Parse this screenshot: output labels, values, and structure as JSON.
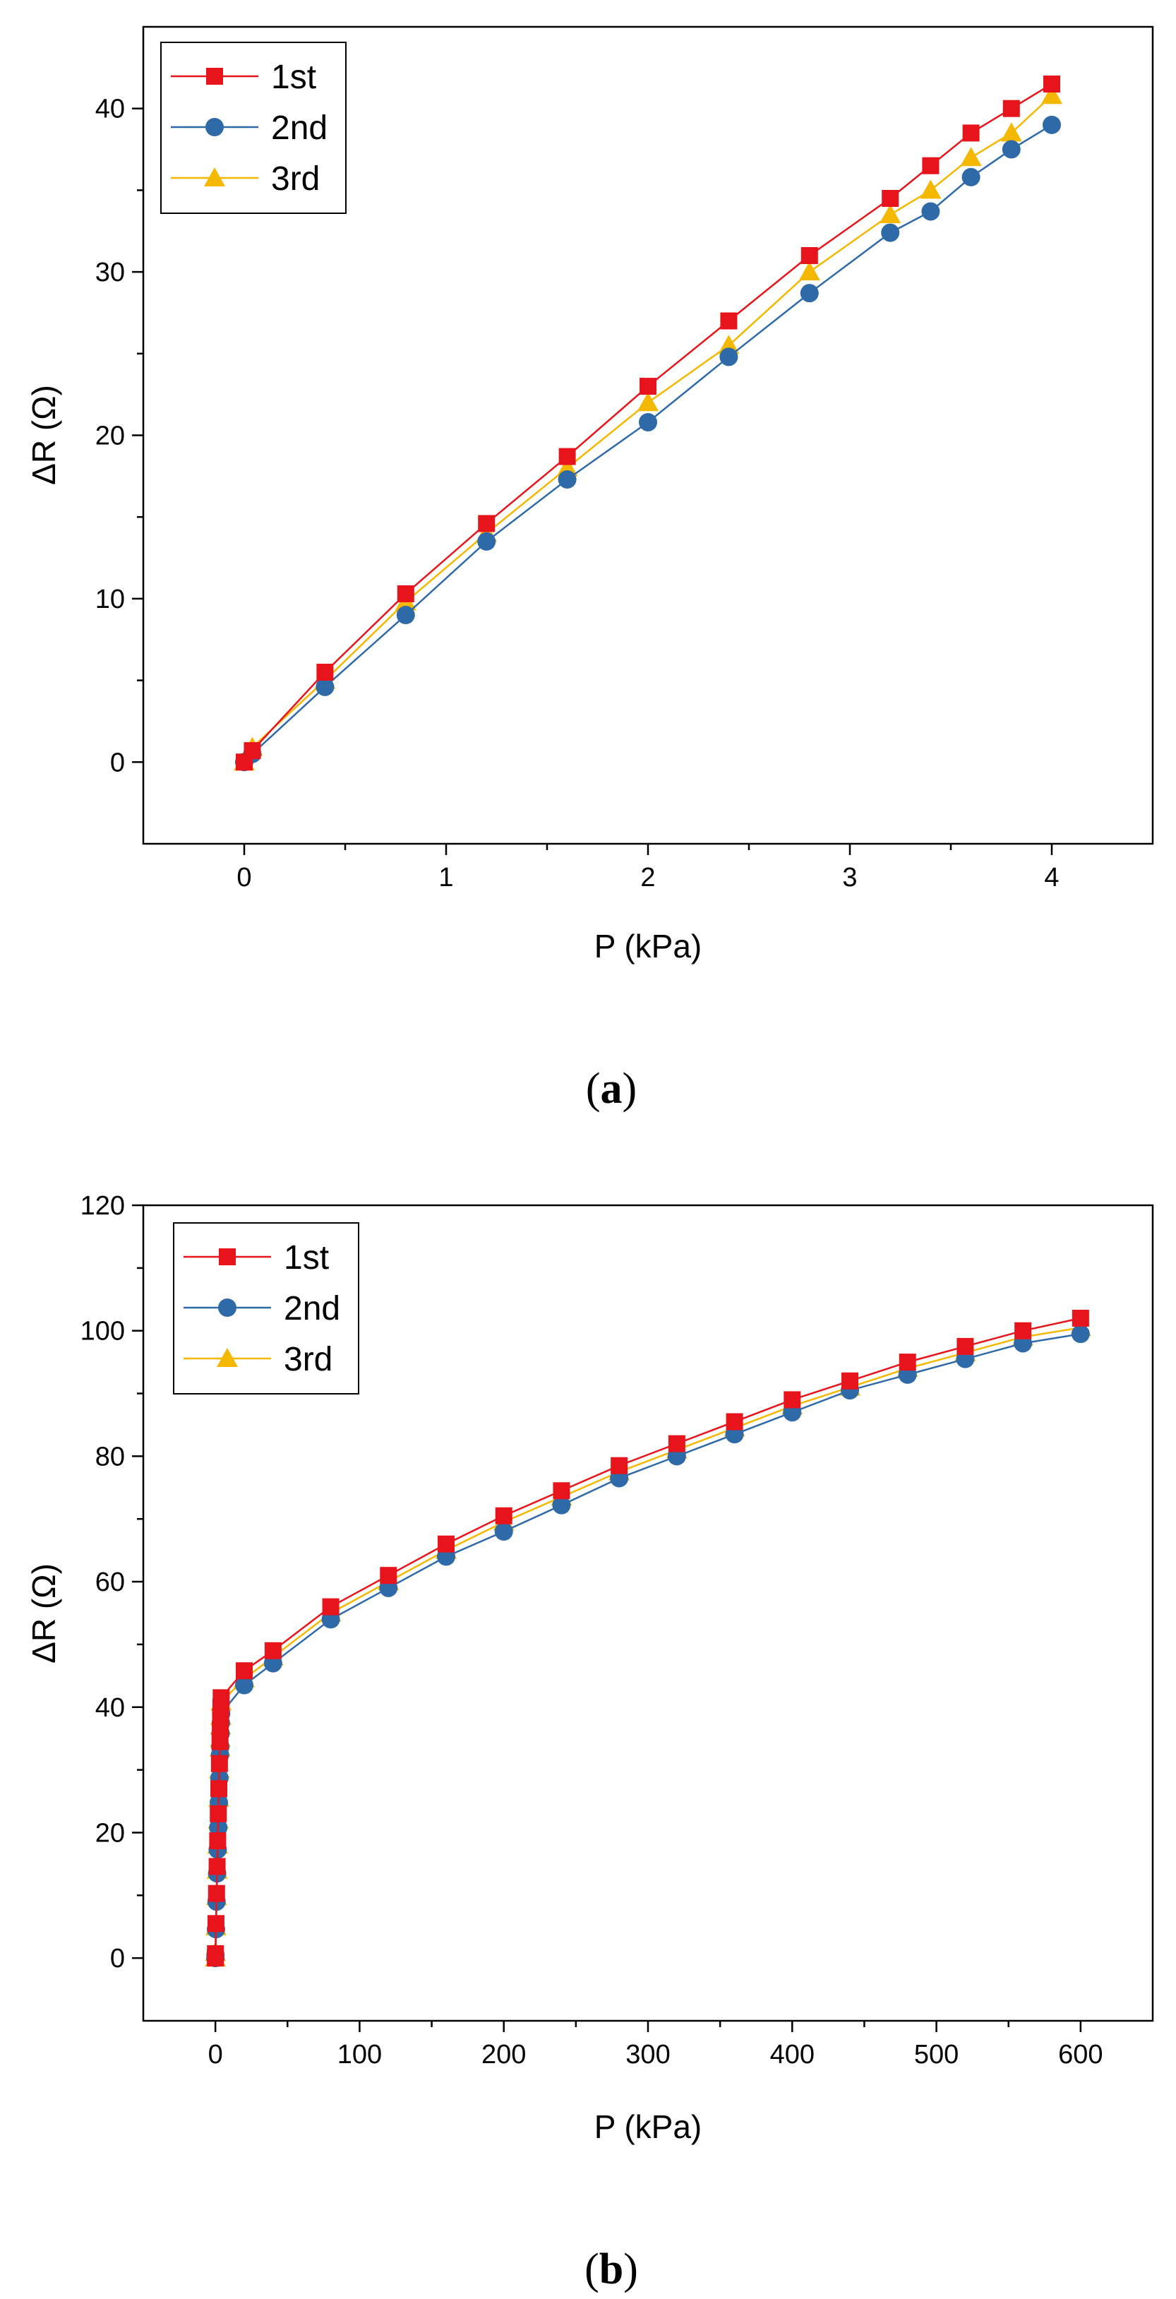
{
  "chart_data": [
    {
      "type": "line",
      "caption_letter": "a",
      "xlabel": "P (kPa)",
      "ylabel": "ΔR (Ω)",
      "xlim": [
        -0.5,
        4.5
      ],
      "ylim": [
        -5,
        45
      ],
      "xticks": [
        0,
        1,
        2,
        3,
        4
      ],
      "yticks": [
        0,
        10,
        20,
        30,
        40
      ],
      "legend_position": "top-left",
      "series": [
        {
          "name": "1st",
          "color": "#e8141b",
          "marker": "square",
          "x": [
            0,
            0.04,
            0.4,
            0.8,
            1.2,
            1.6,
            2.0,
            2.4,
            2.8,
            3.2,
            3.4,
            3.6,
            3.8,
            4.0
          ],
          "y": [
            0,
            0.7,
            5.5,
            10.3,
            14.6,
            18.7,
            23.0,
            27.0,
            31.0,
            34.5,
            36.5,
            38.5,
            40.0,
            41.5
          ]
        },
        {
          "name": "2nd",
          "color": "#2f6aa8",
          "marker": "circle",
          "x": [
            0,
            0.04,
            0.4,
            0.8,
            1.2,
            1.6,
            2.0,
            2.4,
            2.8,
            3.2,
            3.4,
            3.6,
            3.8,
            4.0
          ],
          "y": [
            0,
            0.5,
            4.6,
            9.0,
            13.5,
            17.3,
            20.8,
            24.8,
            28.7,
            32.4,
            33.7,
            35.8,
            37.5,
            39.0
          ]
        },
        {
          "name": "3rd",
          "color": "#f5b800",
          "marker": "triangle",
          "x": [
            0,
            0.04,
            0.4,
            0.8,
            1.2,
            1.6,
            2.0,
            2.4,
            2.8,
            3.2,
            3.4,
            3.6,
            3.8,
            4.0
          ],
          "y": [
            0,
            0.9,
            5.0,
            9.8,
            14.0,
            18.0,
            22.0,
            25.5,
            30.0,
            33.5,
            35.0,
            37.0,
            38.5,
            40.8
          ]
        }
      ]
    },
    {
      "type": "line",
      "caption_letter": "b",
      "xlabel": "P (kPa)",
      "ylabel": "ΔR (Ω)",
      "xlim": [
        -50,
        650
      ],
      "ylim": [
        -10,
        120
      ],
      "xticks": [
        0,
        100,
        200,
        300,
        400,
        500,
        600
      ],
      "yticks": [
        0,
        20,
        40,
        60,
        80,
        100,
        120
      ],
      "legend_position": "top-left",
      "series": [
        {
          "name": "1st",
          "color": "#e8141b",
          "marker": "square",
          "x": [
            0,
            0.04,
            0.4,
            0.8,
            1.2,
            1.6,
            2.0,
            2.4,
            2.8,
            3.2,
            3.4,
            3.6,
            3.8,
            4.0,
            20,
            40,
            80,
            120,
            160,
            200,
            240,
            280,
            320,
            360,
            400,
            440,
            480,
            520,
            560,
            600
          ],
          "y": [
            0,
            0.7,
            5.5,
            10.3,
            14.6,
            18.7,
            23.0,
            27.0,
            31.0,
            34.5,
            36.5,
            38.5,
            40.0,
            41.5,
            45.8,
            49.0,
            56.0,
            61.0,
            66.0,
            70.5,
            74.5,
            78.5,
            82.0,
            85.5,
            89.0,
            92.0,
            95.0,
            97.5,
            100.0,
            102.0
          ]
        },
        {
          "name": "2nd",
          "color": "#2f6aa8",
          "marker": "circle",
          "x": [
            0,
            0.04,
            0.4,
            0.8,
            1.2,
            1.6,
            2.0,
            2.4,
            2.8,
            3.2,
            3.4,
            3.6,
            3.8,
            4.0,
            20,
            40,
            80,
            120,
            160,
            200,
            240,
            280,
            320,
            360,
            400,
            440,
            480,
            520,
            560,
            600
          ],
          "y": [
            0,
            0.5,
            4.6,
            9.0,
            13.5,
            17.3,
            20.8,
            24.8,
            28.7,
            32.4,
            33.7,
            35.8,
            37.5,
            39.0,
            43.5,
            47.0,
            54.0,
            59.0,
            64.0,
            68.0,
            72.2,
            76.5,
            80.0,
            83.5,
            87.0,
            90.5,
            93.0,
            95.5,
            98.0,
            99.5
          ]
        },
        {
          "name": "3rd",
          "color": "#f5b800",
          "marker": "triangle",
          "x": [
            0,
            0.04,
            0.4,
            0.8,
            1.2,
            1.6,
            2.0,
            2.4,
            2.8,
            3.2,
            3.4,
            3.6,
            3.8,
            4.0,
            20,
            40,
            80,
            120,
            160,
            200,
            240,
            280,
            320,
            360,
            400,
            440,
            480,
            520,
            560,
            600
          ],
          "y": [
            0,
            0.9,
            5.0,
            9.8,
            14.0,
            18.0,
            22.0,
            25.5,
            30.0,
            33.5,
            35.0,
            37.0,
            38.5,
            40.8,
            44.5,
            48.0,
            55.0,
            60.0,
            65.0,
            69.5,
            73.5,
            77.5,
            81.0,
            84.5,
            88.0,
            91.0,
            94.0,
            96.5,
            99.0,
            100.5
          ]
        }
      ]
    }
  ]
}
